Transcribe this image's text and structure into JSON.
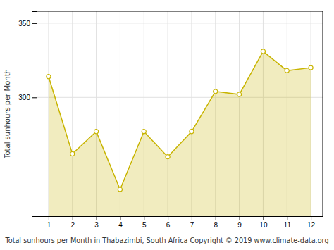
{
  "chart_data": {
    "type": "area",
    "x": [
      1,
      2,
      3,
      4,
      5,
      6,
      7,
      8,
      9,
      10,
      11,
      12
    ],
    "values": [
      314,
      262,
      277,
      238,
      277,
      260,
      277,
      304,
      302,
      331,
      318,
      320
    ],
    "color": "#c8b400",
    "marker": "circle",
    "xlabel": "Total sunhours per Month in Thabazimbi, South Africa Copyright © 2019 www.climate-data.org",
    "ylabel": "Total sunhours per Month",
    "xlim": [
      0.5,
      12.5
    ],
    "ylim": [
      220,
      358
    ],
    "xticks": [
      1,
      2,
      3,
      4,
      5,
      6,
      7,
      8,
      9,
      10,
      11,
      12
    ],
    "yticks": [
      300,
      350
    ],
    "grid": true
  }
}
